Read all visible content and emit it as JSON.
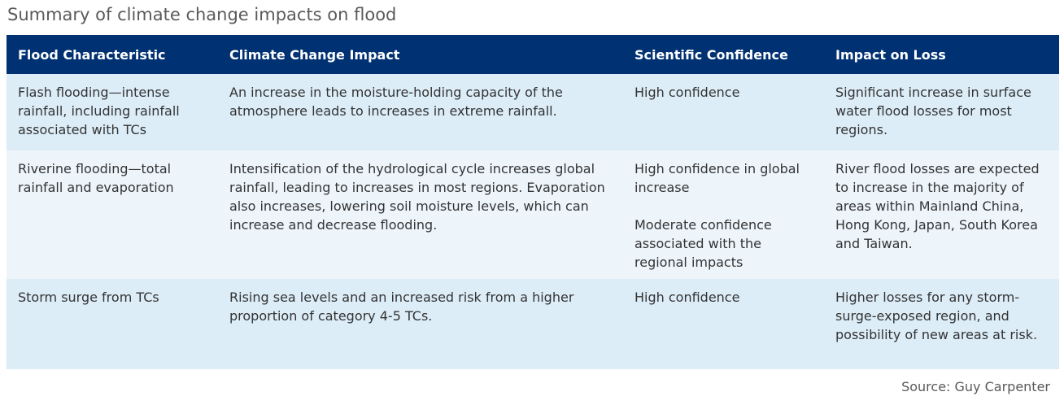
{
  "title": "Summary of climate change impacts on flood",
  "table": {
    "headers": [
      "Flood Characteristic",
      "Climate Change Impact",
      "Scientific Confidence",
      "Impact on Loss"
    ],
    "rows": [
      {
        "characteristic": "Flash flooding—intense rainfall, including rainfall associated with TCs",
        "impact": "An increase in the moisture-holding capacity of the atmosphere leads to increases in extreme rainfall.",
        "confidence": "High confidence",
        "confidence_note": "",
        "loss": "Significant increase in surface water flood losses for most regions."
      },
      {
        "characteristic": "Riverine flooding—total rainfall and evaporation",
        "impact": "Intensification of the hydrological cycle increases global rainfall, leading to increases in most regions. Evaporation also increases, lowering soil moisture levels, which can increase and decrease flooding.",
        "confidence": "High confidence in global increase",
        "confidence_note": "Moderate confidence associated with the regional impacts",
        "loss": "River flood losses are expected to increase in the majority of areas within Mainland China, Hong Kong, Japan, South Korea and Taiwan."
      },
      {
        "characteristic": "Storm surge from TCs",
        "impact": "Rising sea levels and an increased risk from a higher proportion of category 4-5 TCs.",
        "confidence": "High confidence",
        "confidence_note": "",
        "loss": "Higher losses for any storm-surge-exposed region, and possibility of new areas at risk."
      }
    ]
  },
  "source": "Source: Guy Carpenter",
  "colors": {
    "header_background": "#003173",
    "row_shade_dark": "#dcedf8",
    "row_shade_light": "#edf5fb"
  }
}
